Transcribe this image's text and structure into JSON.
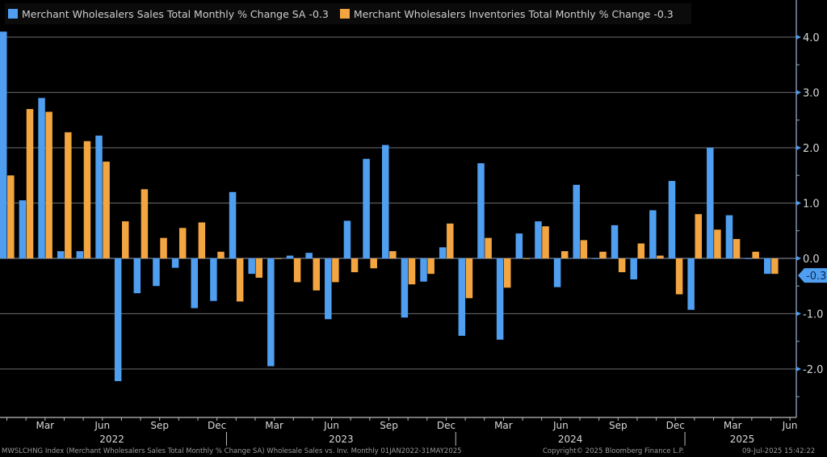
{
  "colors": {
    "sales": "#4f9ef0",
    "inventories": "#f2a540",
    "grid": "#5a5a5a",
    "axis": "#8fa6c8",
    "text": "#d8d8d8",
    "last_label_bg": "#4f9ef0"
  },
  "legend": [
    {
      "label": "Merchant Wholesalers Sales Total Monthly % Change SA -0.3",
      "color": "#4f9ef0"
    },
    {
      "label": "Merchant Wholesalers Inventories Total Monthly % Change -0.3",
      "color": "#f2a540"
    }
  ],
  "footer": {
    "source": "MWSLCHNG Index (Merchant Wholesalers Sales Total Monthly % Change SA) Wholesale Sales vs. Inv. Monthly 01JAN2022-31MAY2025",
    "copyright": "Copyright© 2025 Bloomberg Finance L.P.",
    "timestamp": "09-Jul-2025 15:42:22"
  },
  "chart_data": {
    "type": "bar",
    "title": "",
    "xlabel": "",
    "ylabel": "",
    "ylim": [
      -2.8,
      4.4
    ],
    "yticks": [
      4.0,
      3.0,
      2.0,
      1.0,
      0.0,
      -1.0,
      -2.0
    ],
    "ytick_labels": [
      "4.0",
      "3.0",
      "2.0",
      "1.0",
      "0.0",
      "-1.0",
      "-2.0"
    ],
    "last_value_label": "-0.3",
    "grid": true,
    "legend_position": "top-left",
    "x_tick_labels": [
      {
        "label": "Mar",
        "month_index": 2
      },
      {
        "label": "Jun",
        "month_index": 5
      },
      {
        "label": "Sep",
        "month_index": 8
      },
      {
        "label": "Dec",
        "month_index": 11
      },
      {
        "label": "Mar",
        "month_index": 14
      },
      {
        "label": "Jun",
        "month_index": 17
      },
      {
        "label": "Sep",
        "month_index": 20
      },
      {
        "label": "Dec",
        "month_index": 23
      },
      {
        "label": "Mar",
        "month_index": 26
      },
      {
        "label": "Jun",
        "month_index": 29
      },
      {
        "label": "Sep",
        "month_index": 32
      },
      {
        "label": "Dec",
        "month_index": 35
      },
      {
        "label": "Mar",
        "month_index": 38
      },
      {
        "label": "Jun",
        "month_index": 41
      }
    ],
    "year_labels": [
      {
        "label": "2022",
        "month_index": 5.5
      },
      {
        "label": "2023",
        "month_index": 17.5
      },
      {
        "label": "2024",
        "month_index": 29.5
      },
      {
        "label": "2025",
        "month_index": 38.5
      }
    ],
    "categories": [
      "Jan 2022",
      "Feb 2022",
      "Mar 2022",
      "Apr 2022",
      "May 2022",
      "Jun 2022",
      "Jul 2022",
      "Aug 2022",
      "Sep 2022",
      "Oct 2022",
      "Nov 2022",
      "Dec 2022",
      "Jan 2023",
      "Feb 2023",
      "Mar 2023",
      "Apr 2023",
      "May 2023",
      "Jun 2023",
      "Jul 2023",
      "Aug 2023",
      "Sep 2023",
      "Oct 2023",
      "Nov 2023",
      "Dec 2023",
      "Jan 2024",
      "Feb 2024",
      "Mar 2024",
      "Apr 2024",
      "May 2024",
      "Jun 2024",
      "Jul 2024",
      "Aug 2024",
      "Sep 2024",
      "Oct 2024",
      "Nov 2024",
      "Dec 2024",
      "Jan 2025",
      "Feb 2025",
      "Mar 2025",
      "Apr 2025",
      "May 2025"
    ],
    "series": [
      {
        "name": "Merchant Wholesalers Sales Total Monthly % Change SA",
        "values": [
          4.1,
          1.05,
          2.9,
          0.13,
          0.13,
          2.22,
          -2.22,
          -0.63,
          -0.5,
          -0.17,
          -0.9,
          -0.77,
          1.2,
          -0.28,
          -1.95,
          0.05,
          0.1,
          -1.1,
          0.68,
          1.8,
          2.05,
          -1.07,
          -0.42,
          0.2,
          -1.4,
          1.72,
          -1.47,
          0.45,
          0.67,
          -0.52,
          1.33,
          0.0,
          0.6,
          -0.38,
          0.87,
          1.4,
          -0.93,
          2.0,
          0.78,
          0.0,
          -0.28
        ]
      },
      {
        "name": "Merchant Wholesalers Inventories Total Monthly % Change",
        "values": [
          1.5,
          2.7,
          2.65,
          2.28,
          2.12,
          1.75,
          0.67,
          1.25,
          0.37,
          0.55,
          0.65,
          0.12,
          -0.78,
          -0.35,
          0.0,
          -0.43,
          -0.58,
          -0.43,
          -0.25,
          -0.18,
          0.13,
          -0.47,
          -0.28,
          0.63,
          -0.72,
          0.37,
          -0.53,
          0.0,
          0.58,
          0.13,
          0.33,
          0.12,
          -0.25,
          0.27,
          0.05,
          -0.65,
          0.8,
          0.52,
          0.35,
          0.12,
          -0.28
        ]
      }
    ]
  }
}
